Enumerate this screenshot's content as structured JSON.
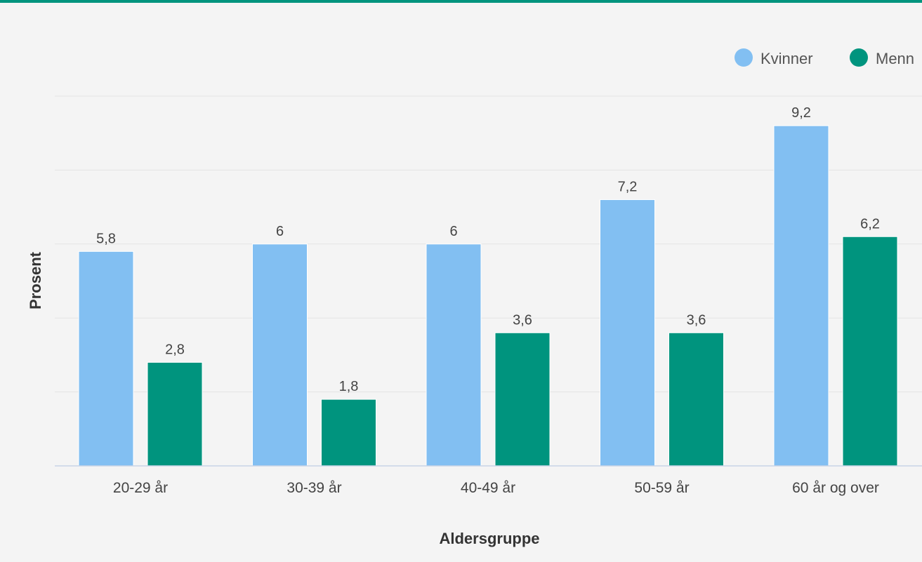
{
  "colors": {
    "accent": "#00947e",
    "kvinner": "#82bff2",
    "menn": "#00947e"
  },
  "chart_data": {
    "type": "bar",
    "categories": [
      "20-29 år",
      "30-39 år",
      "40-49 år",
      "50-59 år",
      "60 år og over"
    ],
    "series": [
      {
        "name": "Kvinner",
        "values": [
          5.8,
          6,
          6,
          7.2,
          9.2
        ],
        "labels": [
          "5,8",
          "6",
          "6",
          "7,2",
          "9,2"
        ]
      },
      {
        "name": "Menn",
        "values": [
          2.8,
          1.8,
          3.6,
          3.6,
          6.2
        ],
        "labels": [
          "2,8",
          "1,8",
          "3,6",
          "3,6",
          "6,2"
        ]
      }
    ],
    "xlabel": "Aldersgruppe",
    "ylabel": "Prosent",
    "ylim": [
      0,
      10
    ],
    "gridlines": [
      2,
      4,
      6,
      8,
      10
    ],
    "grid": true,
    "legend": "top-right"
  }
}
